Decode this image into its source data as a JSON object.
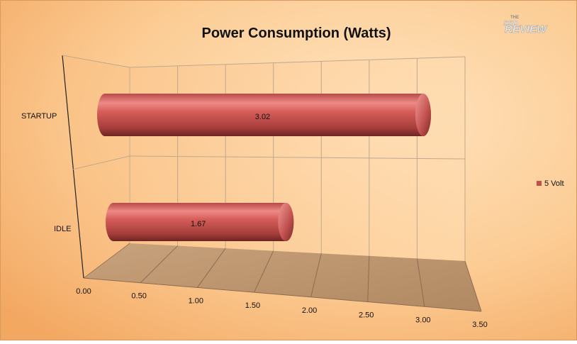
{
  "watermark": {
    "small": "THE",
    "line1": "SSD",
    "line2": "REVIEW"
  },
  "chart_data": {
    "type": "bar",
    "orientation": "horizontal",
    "style": "3d-cylinder",
    "title": "Power Consumption (Watts)",
    "categories": [
      "STARTUP",
      "IDLE"
    ],
    "series": [
      {
        "name": "5 Volt",
        "values": [
          3.02,
          1.67
        ],
        "color": "#C0504D"
      }
    ],
    "data_labels": [
      "3.02",
      "1.67"
    ],
    "xlim": [
      0,
      3.5
    ],
    "x_ticks": [
      0,
      0.5,
      1,
      1.5,
      2,
      2.5,
      3,
      3.5
    ],
    "x_tick_labels": [
      "0.00",
      "0.50",
      "1.00",
      "1.50",
      "2.00",
      "2.50",
      "3.00",
      "3.50"
    ],
    "grid": true,
    "legend_position": "right",
    "colors": {
      "background_light": "#FFE0B8",
      "background_dark": "#F6B06A",
      "floor": "#C09A74",
      "bar": "#C0504D"
    }
  }
}
